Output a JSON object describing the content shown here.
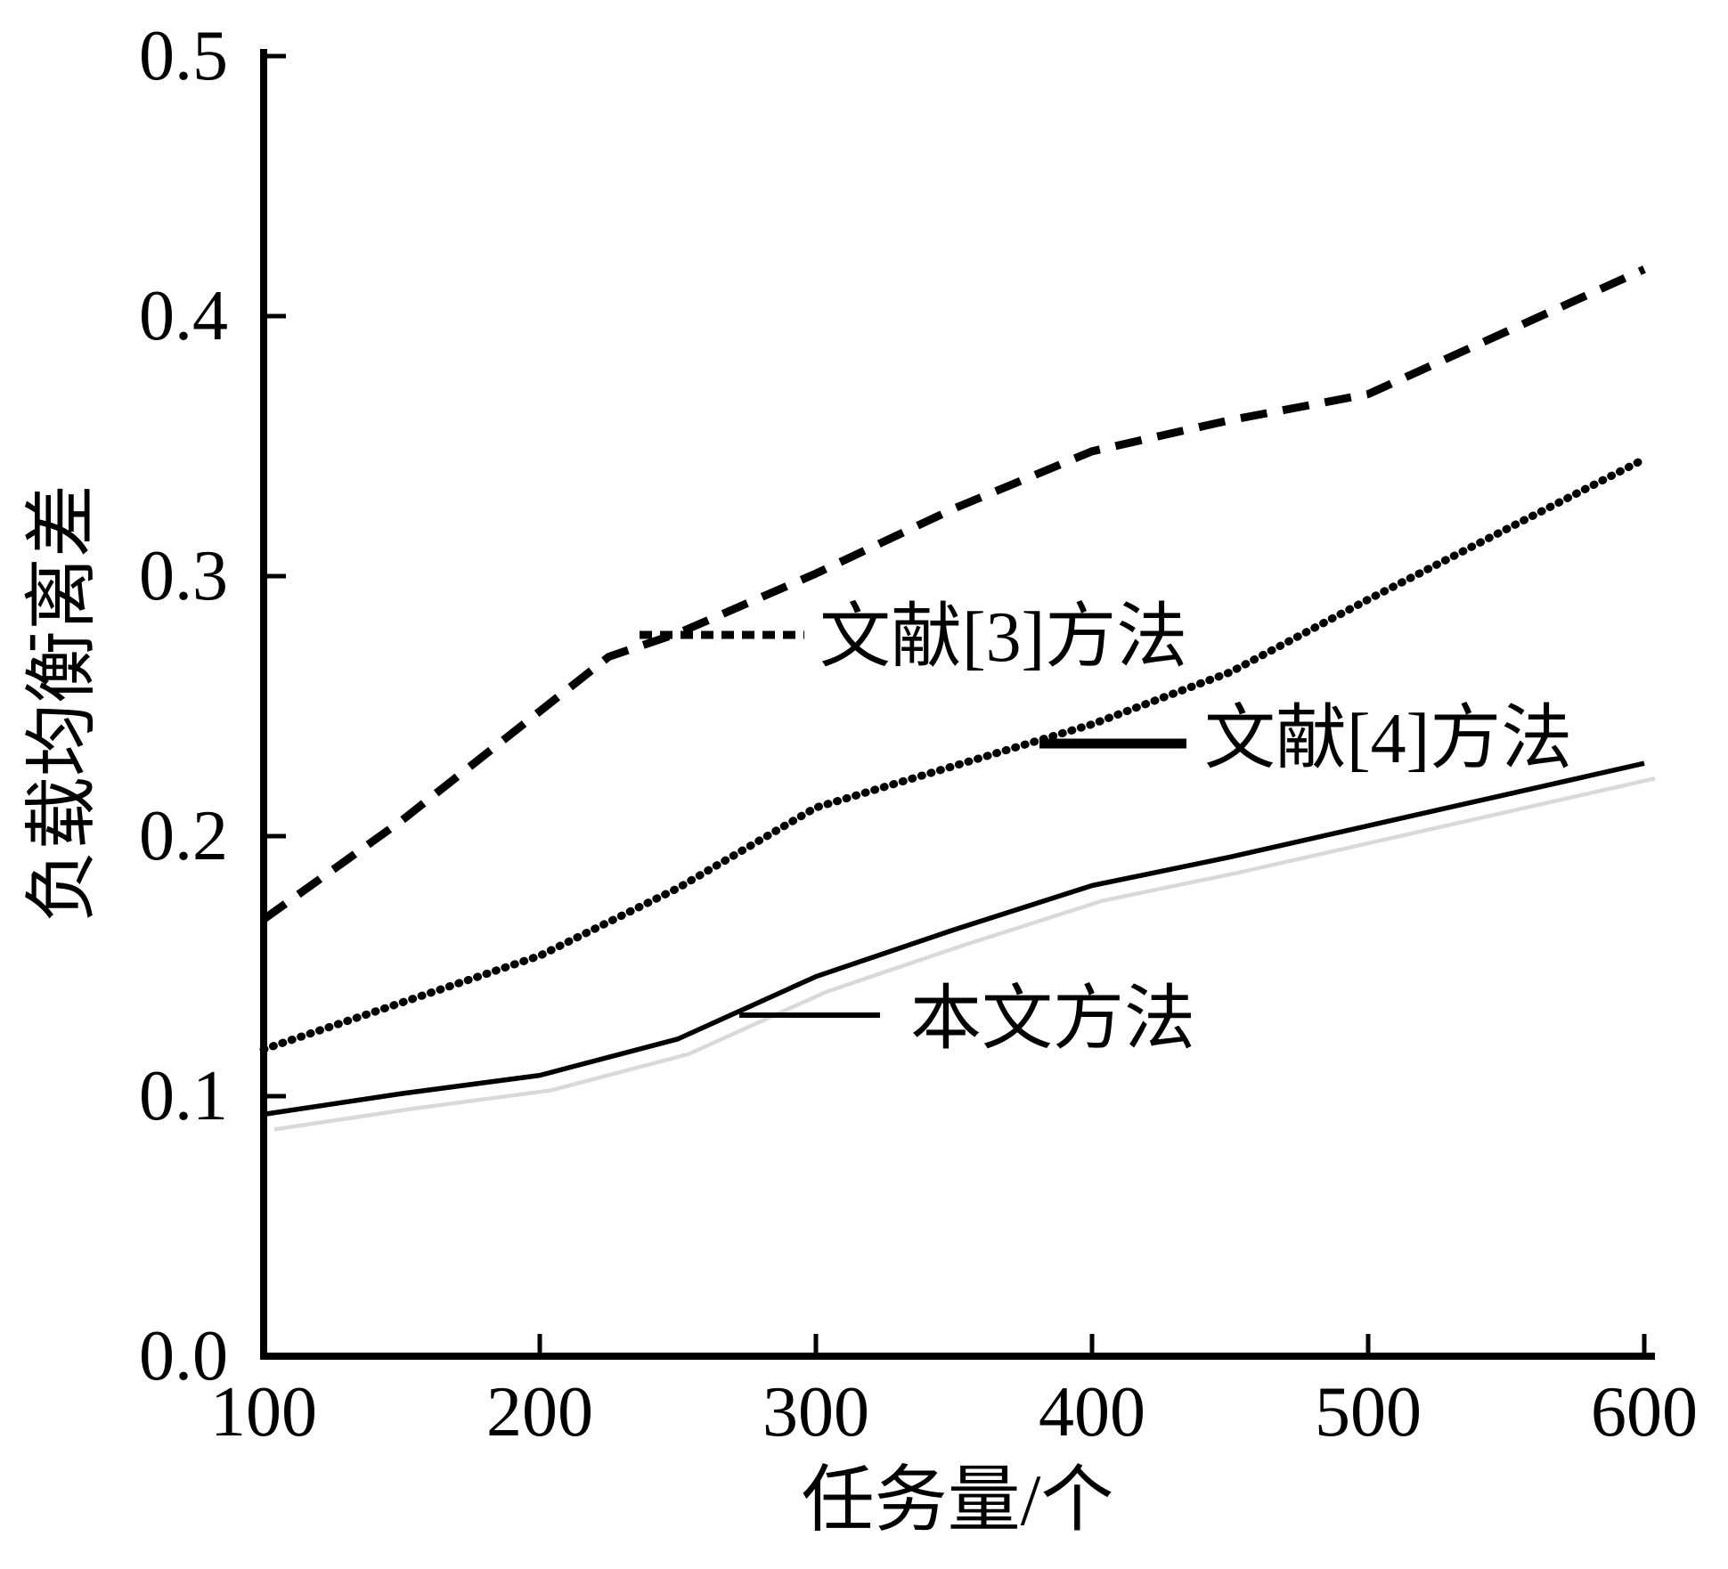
{
  "figure": {
    "background": "#ffffff",
    "ink_color": "#000000",
    "shadow_color": "#d9d9d9"
  },
  "chart_data": {
    "type": "line",
    "title": "",
    "xlabel": "任务量/个",
    "ylabel": "负载均衡离差",
    "xlim": [
      100,
      600
    ],
    "ylim": [
      0.0,
      0.5
    ],
    "grid": false,
    "legend_position": "inline-annotations",
    "x_ticks": [
      100,
      200,
      300,
      400,
      500,
      600
    ],
    "y_ticks": [
      0.0,
      0.1,
      0.2,
      0.3,
      0.4,
      0.5
    ],
    "y_tick_labels": [
      "0.0",
      "0.1",
      "0.2",
      "0.3",
      "0.4",
      "0.5"
    ],
    "x_tick_labels": [
      "100",
      "200",
      "300",
      "400",
      "500",
      "600"
    ],
    "series": [
      {
        "name": "文献[3]方法",
        "style": "dashed",
        "color": "#000000",
        "x": [
          100,
          150,
          200,
          225,
          250,
          300,
          350,
          400,
          450,
          500,
          550,
          600
        ],
        "values": [
          0.168,
          0.206,
          0.248,
          0.269,
          0.278,
          0.301,
          0.326,
          0.348,
          0.36,
          0.37,
          0.394,
          0.418
        ]
      },
      {
        "name": "文献[4]方法",
        "style": "dense-dotted",
        "color": "#000000",
        "x": [
          100,
          150,
          200,
          250,
          300,
          350,
          400,
          450,
          500,
          550,
          600
        ],
        "values": [
          0.118,
          0.136,
          0.154,
          0.18,
          0.211,
          0.227,
          0.243,
          0.263,
          0.291,
          0.318,
          0.345
        ]
      },
      {
        "name": "本文方法",
        "style": "solid",
        "color": "#000000",
        "shadow": true,
        "x": [
          100,
          150,
          200,
          250,
          300,
          350,
          400,
          450,
          500,
          550,
          600
        ],
        "values": [
          0.093,
          0.101,
          0.108,
          0.122,
          0.146,
          0.164,
          0.181,
          0.192,
          0.204,
          0.216,
          0.228
        ]
      }
    ],
    "annotations": [
      {
        "label": "文献[3]方法",
        "series": "文献[3]方法",
        "anchor_x": 237,
        "anchor_y": 0.277
      },
      {
        "label": "文献[4]方法",
        "series": "文献[4]方法",
        "anchor_x": 381,
        "anchor_y": 0.236
      },
      {
        "label": "本文方法",
        "series": "本文方法",
        "anchor_x": 272,
        "anchor_y": 0.131
      }
    ]
  }
}
